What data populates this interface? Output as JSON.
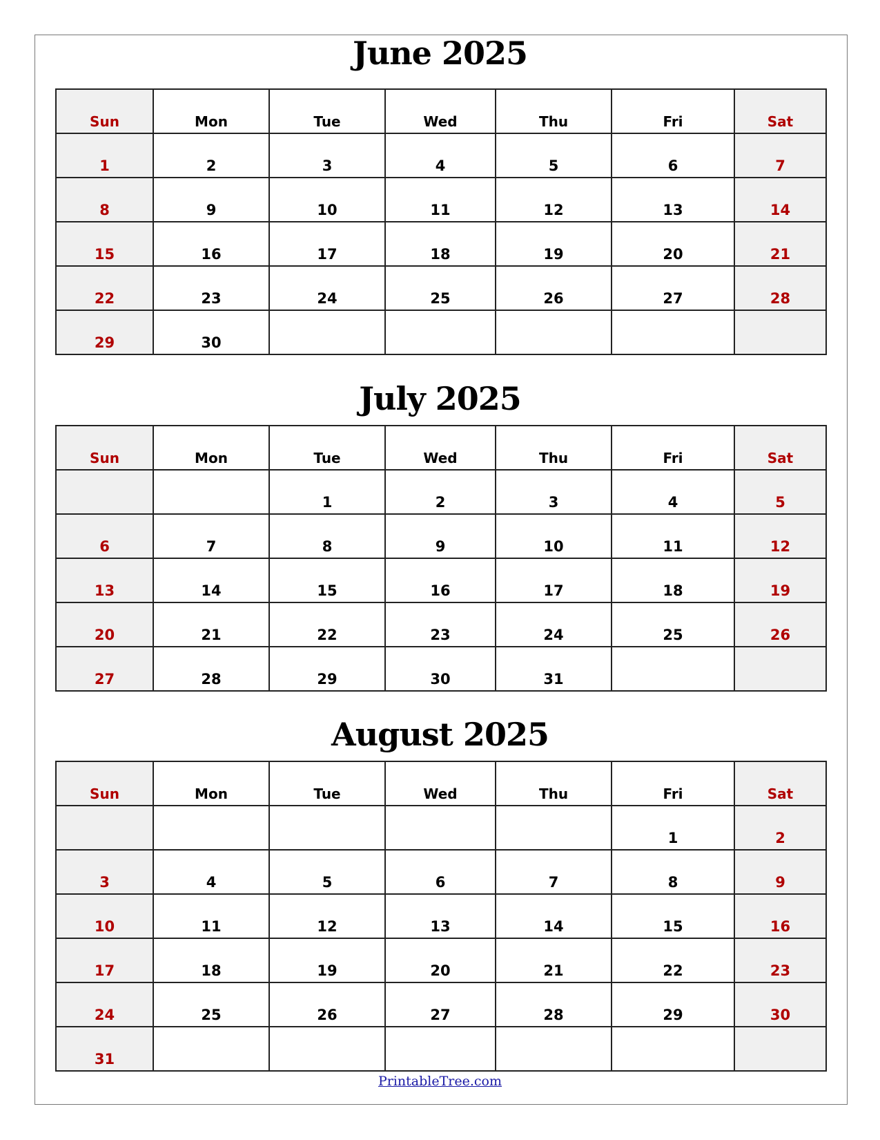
{
  "weekdays": [
    "Sun",
    "Mon",
    "Tue",
    "Wed",
    "Thu",
    "Fri",
    "Sat"
  ],
  "weekend_color": "#b00000",
  "months": [
    {
      "title": "June 2025",
      "weeks": [
        [
          "1",
          "2",
          "3",
          "4",
          "5",
          "6",
          "7"
        ],
        [
          "8",
          "9",
          "10",
          "11",
          "12",
          "13",
          "14"
        ],
        [
          "15",
          "16",
          "17",
          "18",
          "19",
          "20",
          "21"
        ],
        [
          "22",
          "23",
          "24",
          "25",
          "26",
          "27",
          "28"
        ],
        [
          "29",
          "30",
          "",
          "",
          "",
          "",
          ""
        ]
      ]
    },
    {
      "title": "July 2025",
      "weeks": [
        [
          "",
          "",
          "1",
          "2",
          "3",
          "4",
          "5"
        ],
        [
          "6",
          "7",
          "8",
          "9",
          "10",
          "11",
          "12"
        ],
        [
          "13",
          "14",
          "15",
          "16",
          "17",
          "18",
          "19"
        ],
        [
          "20",
          "21",
          "22",
          "23",
          "24",
          "25",
          "26"
        ],
        [
          "27",
          "28",
          "29",
          "30",
          "31",
          "",
          ""
        ]
      ]
    },
    {
      "title": "August 2025",
      "weeks": [
        [
          "",
          "",
          "",
          "",
          "",
          "1",
          "2"
        ],
        [
          "3",
          "4",
          "5",
          "6",
          "7",
          "8",
          "9"
        ],
        [
          "10",
          "11",
          "12",
          "13",
          "14",
          "15",
          "16"
        ],
        [
          "17",
          "18",
          "19",
          "20",
          "21",
          "22",
          "23"
        ],
        [
          "24",
          "25",
          "26",
          "27",
          "28",
          "29",
          "30"
        ],
        [
          "31",
          "",
          "",
          "",
          "",
          "",
          ""
        ]
      ]
    }
  ],
  "footer": {
    "link_text": "PrintableTree.com"
  }
}
